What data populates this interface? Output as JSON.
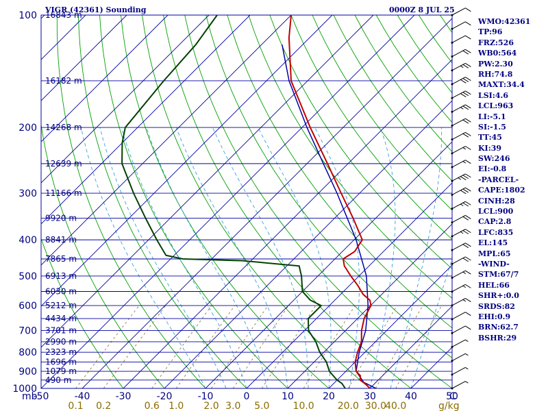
{
  "header": {
    "title": "VIGR (42361) Sounding",
    "timestamp": "0000Z  8 JUL 25"
  },
  "indices": [
    "WMO:42361",
    "TP:96",
    "FRZ:526",
    "WB0:564",
    "PW:2.30",
    "RH:74.8",
    "MAXT:34.4",
    "LSI:4.6",
    "LCL:963",
    "LI:-5.1",
    "SI:-1.5",
    "TT:45",
    "KI:39",
    "SW:246",
    "EI:-0.8",
    "-PARCEL-",
    "CAPE:1802",
    "CINH:28",
    "LCL:900",
    "CAP:2.8",
    "LFC:835",
    "EL:145",
    "MPL:65",
    "-WIND-",
    "STM:67/7",
    "HEL:66",
    "SHR+:0.0",
    "SRDS:82",
    "EHI:0.9",
    "BRN:62.7",
    "BSHR:29"
  ],
  "colors": {
    "isobar": "#0000a0",
    "isotherm": "#0000a0",
    "dry_adiabat": "#00a000",
    "moist_adiabat": "#3aa0d8",
    "mixing_ratio": "#8b7a3a",
    "temperature": "#c00000",
    "dewpoint": "#004000",
    "parcel": "#0000a0",
    "wind": "#000000",
    "text": "#000080",
    "mixing_label": "#8b6b00"
  },
  "chart_data": {
    "type": "skew-t log-p sounding",
    "y_unit": "mb",
    "x_unit": "C",
    "mixing_unit": "g/kg",
    "pressure_ticks": [
      100,
      200,
      300,
      400,
      500,
      600,
      700,
      800,
      900,
      1000
    ],
    "temperature_ticks": [
      -50,
      -40,
      -30,
      -20,
      -10,
      0,
      10,
      20,
      30,
      40,
      50
    ],
    "xlim": [
      -50,
      50
    ],
    "ylim": [
      1000,
      100
    ],
    "mixing_ratio_labels": [
      "0.1",
      "0.2",
      "0.6",
      "1.0",
      "2.0",
      "3.0",
      "5.0",
      "10.0",
      "20.0",
      "30.0",
      "40.0"
    ],
    "height_levels": [
      {
        "p": 100,
        "label": "16843 m"
      },
      {
        "p": 150,
        "label": "16182 m"
      },
      {
        "p": 200,
        "label": "14268 m"
      },
      {
        "p": 250,
        "label": "12639 m"
      },
      {
        "p": 300,
        "label": "11166 m"
      },
      {
        "p": 350,
        "label": "9920 m"
      },
      {
        "p": 400,
        "label": "8841 m"
      },
      {
        "p": 450,
        "label": "7865 m"
      },
      {
        "p": 500,
        "label": "6913 m"
      },
      {
        "p": 550,
        "label": "6030 m"
      },
      {
        "p": 600,
        "label": "5212 m"
      },
      {
        "p": 650,
        "label": "4434 m"
      },
      {
        "p": 700,
        "label": "3701 m"
      },
      {
        "p": 750,
        "label": "2990 m"
      },
      {
        "p": 800,
        "label": "2323 m"
      },
      {
        "p": 850,
        "label": "1696 m"
      },
      {
        "p": 900,
        "label": "1079 m"
      },
      {
        "p": 950,
        "label": "490 m"
      }
    ],
    "temperature": [
      [
        1000,
        30.0
      ],
      [
        970,
        27.6
      ],
      [
        950,
        25.6
      ],
      [
        925,
        24.6
      ],
      [
        900,
        22.5
      ],
      [
        850,
        20.0
      ],
      [
        800,
        18.2
      ],
      [
        750,
        16.6
      ],
      [
        700,
        13.9
      ],
      [
        650,
        11.6
      ],
      [
        600,
        10.1
      ],
      [
        580,
        8.5
      ],
      [
        560,
        5.5
      ],
      [
        530,
        2.0
      ],
      [
        500,
        -2.0
      ],
      [
        470,
        -6.0
      ],
      [
        450,
        -8.0
      ],
      [
        430,
        -7.0
      ],
      [
        400,
        -8.0
      ],
      [
        350,
        -15.5
      ],
      [
        300,
        -24.5
      ],
      [
        250,
        -35.0
      ],
      [
        200,
        -48.0
      ],
      [
        150,
        -64.0
      ],
      [
        115,
        -75.0
      ],
      [
        100,
        -80.0
      ]
    ],
    "dewpoint": [
      [
        1000,
        24.0
      ],
      [
        970,
        22.0
      ],
      [
        950,
        20.0
      ],
      [
        925,
        18.0
      ],
      [
        900,
        16.0
      ],
      [
        850,
        13.0
      ],
      [
        800,
        9.0
      ],
      [
        750,
        5.5
      ],
      [
        700,
        1.0
      ],
      [
        650,
        -2.0
      ],
      [
        600,
        -2.0
      ],
      [
        580,
        -6.0
      ],
      [
        550,
        -10.0
      ],
      [
        500,
        -14.0
      ],
      [
        470,
        -17.0
      ],
      [
        455,
        -32.0
      ],
      [
        450,
        -47.0
      ],
      [
        440,
        -52.0
      ],
      [
        400,
        -58.0
      ],
      [
        350,
        -66.0
      ],
      [
        300,
        -75.0
      ],
      [
        250,
        -85.0
      ],
      [
        220,
        -90.0
      ],
      [
        200,
        -93.0
      ],
      [
        150,
        -95.0
      ],
      [
        120,
        -96.0
      ],
      [
        100,
        -98.0
      ]
    ],
    "parcel": [
      [
        1000,
        31.5
      ],
      [
        963,
        27.0
      ],
      [
        900,
        22.5
      ],
      [
        835,
        20.0
      ],
      [
        800,
        18.6
      ],
      [
        700,
        14.9
      ],
      [
        600,
        9.4
      ],
      [
        500,
        1.8
      ],
      [
        400,
        -9.5
      ],
      [
        300,
        -25.5
      ],
      [
        250,
        -36.0
      ],
      [
        200,
        -48.8
      ],
      [
        150,
        -64.5
      ],
      [
        120,
        -75.0
      ]
    ],
    "wind_speed_kt": [
      5,
      5,
      5,
      5,
      10,
      10,
      15,
      15,
      15,
      20,
      20,
      25,
      20,
      25,
      30,
      35,
      15,
      15,
      20,
      20,
      25,
      30,
      30,
      25,
      20,
      10,
      10,
      10
    ]
  }
}
